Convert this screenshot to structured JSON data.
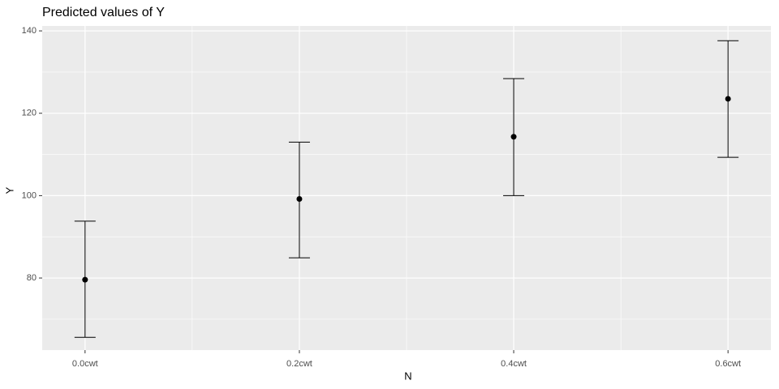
{
  "chart_data": {
    "type": "errorbar",
    "title": "Predicted values of Y",
    "x_label": "N",
    "y_label": "Y",
    "categories": [
      "0.0cwt",
      "0.2cwt",
      "0.4cwt",
      "0.6cwt"
    ],
    "values": [
      79.6,
      99.2,
      114.3,
      123.5
    ],
    "ci_low": [
      65.6,
      84.9,
      100.0,
      109.3
    ],
    "ci_high": [
      93.8,
      113.0,
      128.4,
      137.6
    ],
    "color": "#000000",
    "ylim": [
      62.5,
      141.2
    ],
    "yticks": [
      80,
      100,
      120,
      140
    ],
    "grid": true
  }
}
